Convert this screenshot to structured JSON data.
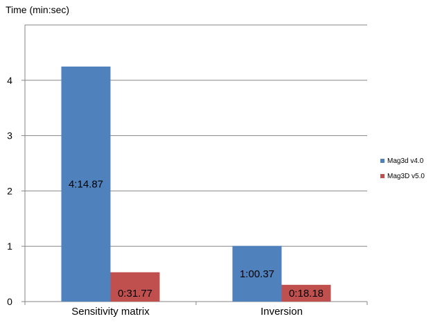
{
  "chart_data": {
    "type": "bar",
    "title": "",
    "ylabel": "Time (min:sec)",
    "xlabel": "",
    "categories": [
      "Sensitivity matrix",
      "Inversion"
    ],
    "series": [
      {
        "name": "Mag3d v4.0",
        "color": "#4f81bd",
        "values": [
          4.248,
          1.006
        ],
        "labels": [
          "4:14.87",
          "1:00.37"
        ]
      },
      {
        "name": "Mag3D v5.0",
        "color": "#c0504d",
        "values": [
          0.53,
          0.303
        ],
        "labels": [
          "0:31.77",
          "0:18.18"
        ]
      }
    ],
    "ylim": [
      0,
      5
    ],
    "yticks": [
      0,
      1,
      2,
      3,
      4
    ],
    "grid": true,
    "legend": "right"
  }
}
